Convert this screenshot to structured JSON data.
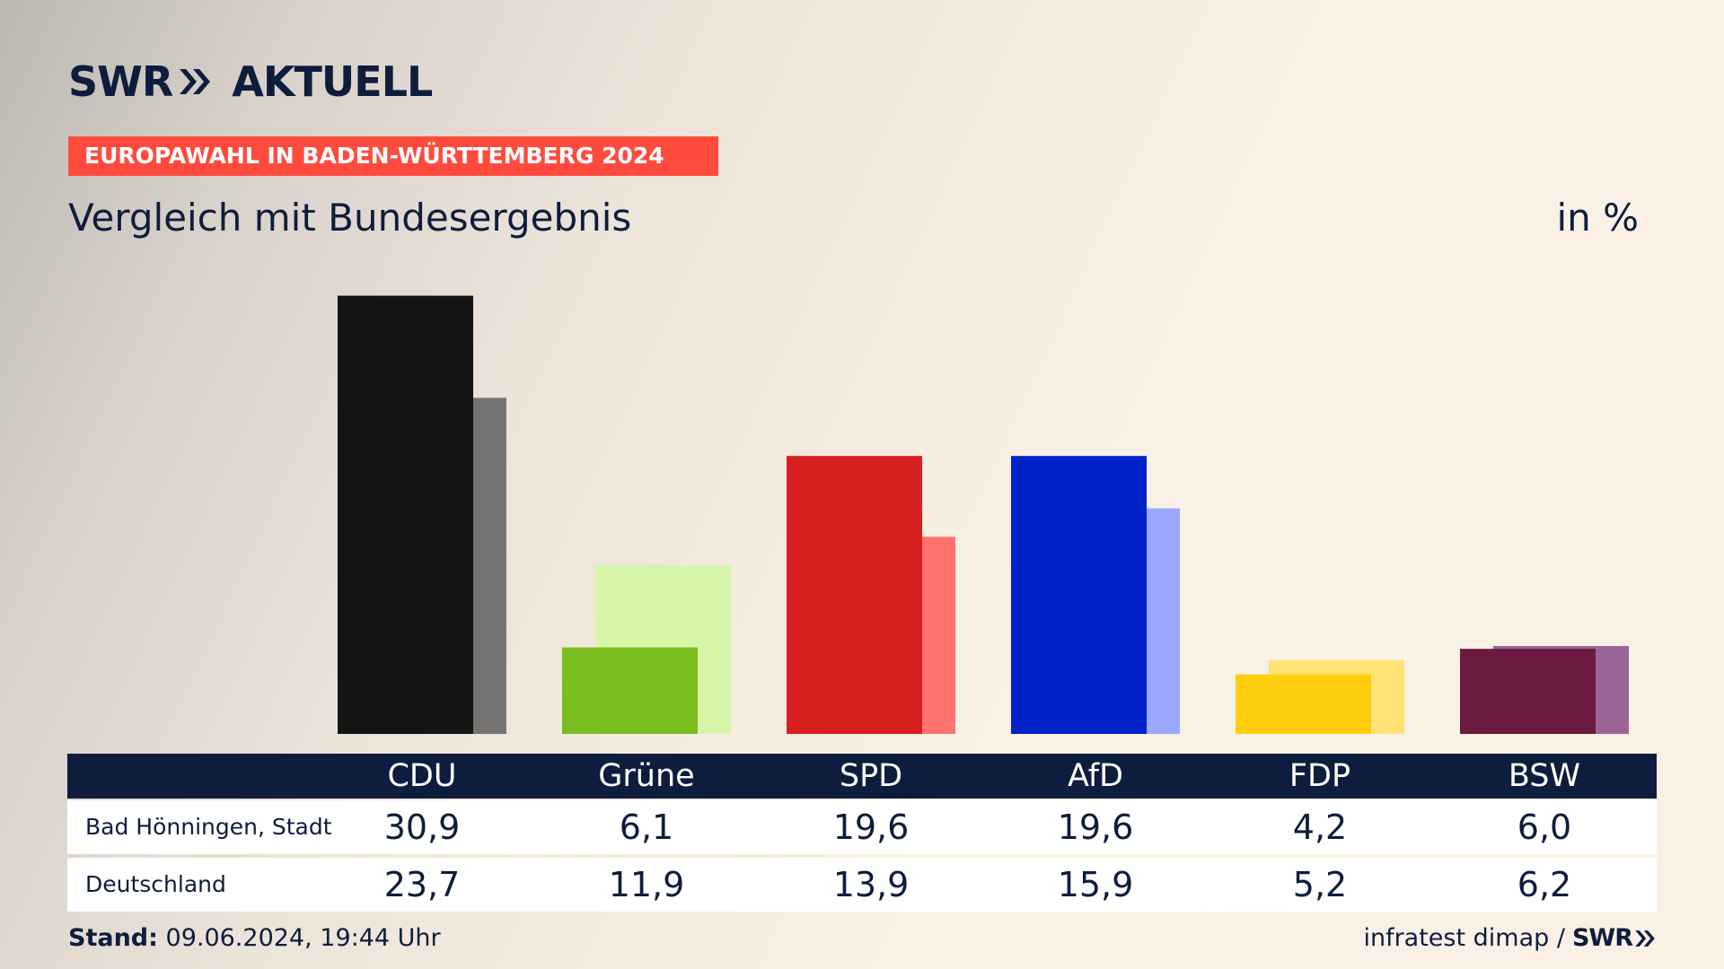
{
  "brand": {
    "logo_left": "SWR",
    "logo_right": "AKTUELL"
  },
  "kicker": "EUROPAWAHL IN BADEN-WÜRTTEMBERG 2024",
  "headline": "Vergleich mit Bundesergebnis",
  "unit": "in %",
  "footer": {
    "stand_label": "Stand:",
    "stand_value": "09.06.2024, 19:44 Uhr",
    "source": "infratest dimap /",
    "source_logo": "SWR"
  },
  "chart_data": {
    "type": "bar",
    "categories": [
      "CDU",
      "Grüne",
      "SPD",
      "AfD",
      "FDP",
      "BSW"
    ],
    "series": [
      {
        "name": "Bad Hönningen, Stadt",
        "values": [
          30.9,
          6.1,
          19.6,
          19.6,
          4.2,
          6.0
        ]
      },
      {
        "name": "Deutschland",
        "values": [
          23.7,
          11.9,
          13.9,
          15.9,
          5.2,
          6.2
        ]
      }
    ],
    "display": {
      "Bad Hönningen, Stadt": [
        "30,9",
        "6,1",
        "19,6",
        "19,6",
        "4,2",
        "6,0"
      ],
      "Deutschland": [
        "23,7",
        "11,9",
        "13,9",
        "15,9",
        "5,2",
        "6,2"
      ]
    },
    "colors": {
      "primary": [
        "#141414",
        "#7abd1e",
        "#d71f20",
        "#0022c8",
        "#ffcf0f",
        "#6b1a40"
      ],
      "secondary": [
        "#757472",
        "#d7f5a8",
        "#ff726e",
        "#9aa9ff",
        "#ffe274",
        "#9b6697"
      ]
    },
    "ylim": [
      0,
      31
    ],
    "grid": false,
    "legend": "table below chart"
  }
}
